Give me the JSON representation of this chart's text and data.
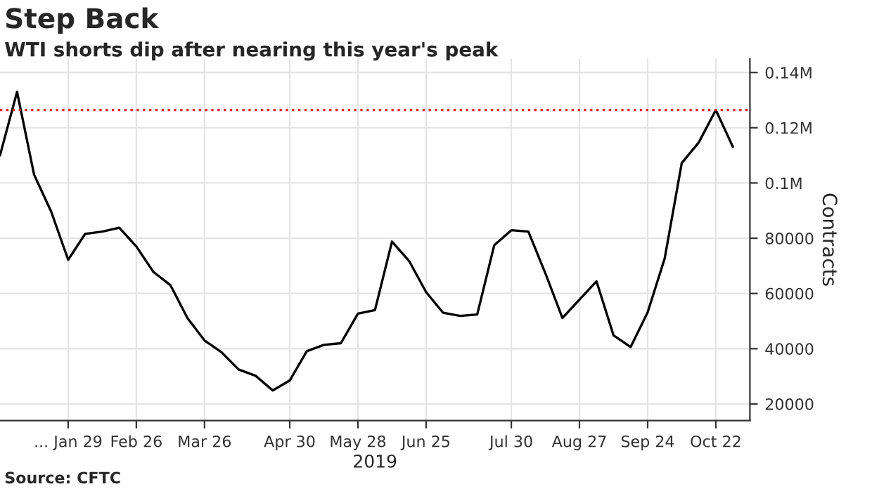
{
  "chart_data": {
    "type": "line",
    "title": "Step Back",
    "subtitle": "WTI shorts dip after nearing this year's peak",
    "ylabel": "Contracts",
    "xlabel": "2019",
    "annotations": [
      "Source: CFTC"
    ],
    "x": [
      "2019-01-01",
      "2019-01-08",
      "2019-01-15",
      "2019-01-22",
      "2019-01-29",
      "2019-02-05",
      "2019-02-12",
      "2019-02-19",
      "2019-02-26",
      "2019-03-05",
      "2019-03-12",
      "2019-03-19",
      "2019-03-26",
      "2019-04-02",
      "2019-04-09",
      "2019-04-16",
      "2019-04-23",
      "2019-04-30",
      "2019-05-07",
      "2019-05-14",
      "2019-05-21",
      "2019-05-28",
      "2019-06-04",
      "2019-06-11",
      "2019-06-18",
      "2019-06-25",
      "2019-07-02",
      "2019-07-09",
      "2019-07-16",
      "2019-07-23",
      "2019-07-30",
      "2019-08-06",
      "2019-08-13",
      "2019-08-20",
      "2019-08-27",
      "2019-09-03",
      "2019-09-10",
      "2019-09-17",
      "2019-09-24",
      "2019-10-01",
      "2019-10-08",
      "2019-10-15",
      "2019-10-22",
      "2019-10-29"
    ],
    "series": [
      {
        "color": "#000000",
        "values": [
          110000,
          133000,
          103000,
          89700,
          72200,
          81600,
          82400,
          83800,
          77000,
          67800,
          63000,
          51100,
          43000,
          38700,
          32500,
          30200,
          24900,
          28500,
          39100,
          41400,
          42000,
          52700,
          54000,
          78800,
          71800,
          60500,
          53000,
          51900,
          52400,
          77500,
          82900,
          82400,
          67300,
          51100,
          57800,
          64400,
          44800,
          40600,
          53200,
          72700,
          107200,
          114700,
          126400,
          113100
        ]
      }
    ],
    "ref_lines": [
      {
        "axis": "y",
        "value": 126400,
        "color": "#e8202a",
        "line_style": "dotted"
      }
    ],
    "xlim": [
      "2019-01-01",
      "2019-11-05"
    ],
    "xticks": [
      {
        "value": "2019-01-29",
        "label": "... Jan 29"
      },
      {
        "value": "2019-02-26",
        "label": "Feb 26"
      },
      {
        "value": "2019-03-26",
        "label": "Mar 26"
      },
      {
        "value": "2019-04-30",
        "label": "Apr 30"
      },
      {
        "value": "2019-05-28",
        "label": "May 28"
      },
      {
        "value": "2019-06-25",
        "label": "Jun 25"
      },
      {
        "value": "2019-07-30",
        "label": "Jul 30"
      },
      {
        "value": "2019-08-27",
        "label": "Aug 27"
      },
      {
        "value": "2019-09-24",
        "label": "Sep 24"
      },
      {
        "value": "2019-10-22",
        "label": "Oct 22"
      }
    ],
    "ylim": [
      14000,
      145000
    ],
    "yticks": [
      20000,
      40000,
      60000,
      80000,
      {
        "value": 100000,
        "label": "0.1M"
      },
      {
        "value": 120000,
        "label": "0.12M"
      },
      {
        "value": 140000,
        "label": "0.14M"
      }
    ],
    "grid": true,
    "marker": "none",
    "line_style": "solid"
  }
}
